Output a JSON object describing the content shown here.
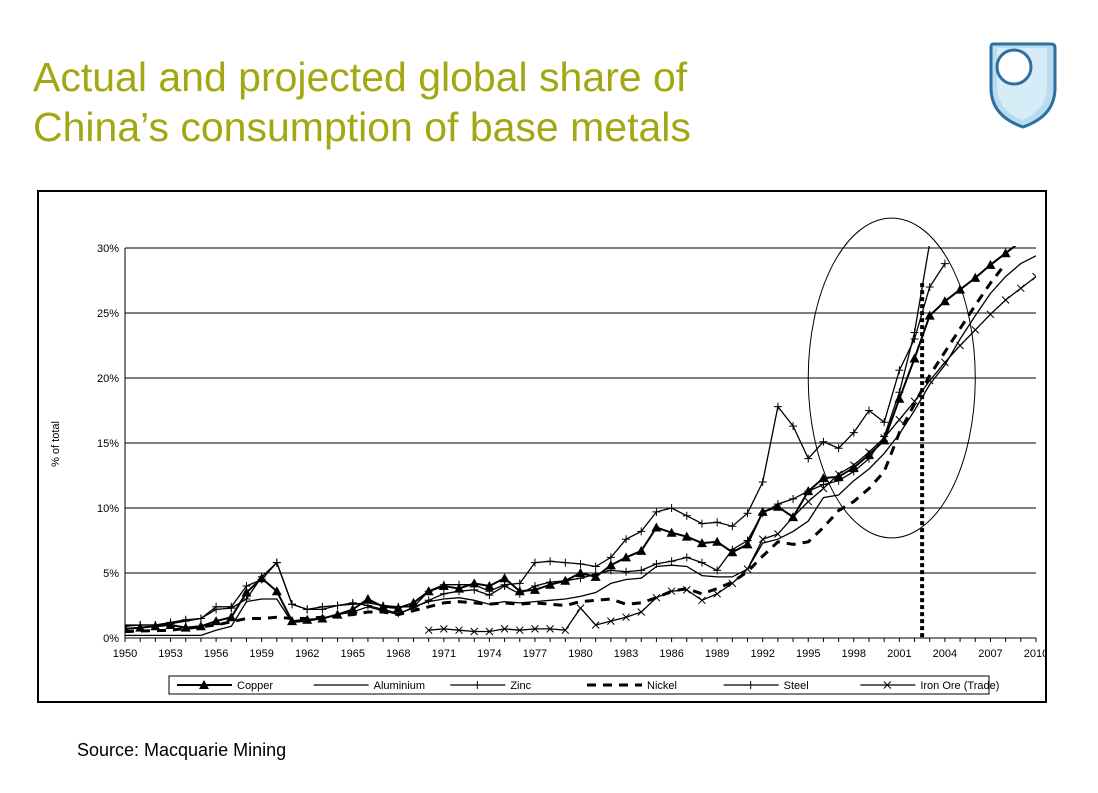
{
  "title_line1": "Actual and projected global share of",
  "title_line2": "China’s consumption of base metals",
  "source": "Source: Macquarie Mining",
  "logo_icon": "open-university-shield-icon",
  "colors": {
    "title": "#a3a711",
    "logo_fill": "#b9dcef",
    "logo_stroke": "#2f6f9f"
  },
  "chart_data": {
    "type": "line",
    "xlim": [
      1950,
      2010
    ],
    "ylim": [
      0,
      30
    ],
    "ylabel": "% of total",
    "xticks": [
      1950,
      1953,
      1956,
      1959,
      1962,
      1965,
      1968,
      1971,
      1974,
      1977,
      1980,
      1983,
      1986,
      1989,
      1992,
      1995,
      1998,
      2001,
      2004,
      2007,
      2010
    ],
    "xtick_labels": [
      "1950",
      "1953",
      "1956",
      "1959",
      "1962",
      "1965",
      "1968",
      "1971",
      "1974",
      "1977",
      "1980",
      "1983",
      "1986",
      "1989",
      "1992",
      "1995",
      "1998",
      "2001",
      "2004",
      "2007",
      "2010"
    ],
    "yticks": [
      0,
      5,
      10,
      15,
      20,
      25,
      30
    ],
    "ytick_labels": [
      "0%",
      "5%",
      "10%",
      "15%",
      "20%",
      "25%",
      "30%"
    ],
    "grid": "horizontal",
    "legend_position": "bottom",
    "annotations": {
      "forecast_line_x": 2002.5,
      "ellipse_center": [
        2000.5,
        20
      ],
      "ellipse_radius": [
        5.5,
        12.3
      ]
    },
    "series": [
      {
        "name": "Copper",
        "marker": "triangle",
        "dash": "solid",
        "x": [
          1950,
          1951,
          1952,
          1953,
          1954,
          1955,
          1956,
          1957,
          1958,
          1959,
          1960,
          1961,
          1962,
          1963,
          1964,
          1965,
          1966,
          1967,
          1968,
          1969,
          1970,
          1971,
          1972,
          1973,
          1974,
          1975,
          1976,
          1977,
          1978,
          1979,
          1980,
          1981,
          1982,
          1983,
          1984,
          1985,
          1986,
          1987,
          1988,
          1989,
          1990,
          1991,
          1992,
          1993,
          1994,
          1995,
          1996,
          1997,
          1998,
          1999,
          2000,
          2001,
          2002,
          2003,
          2004,
          2005,
          2006,
          2007,
          2008,
          2009
        ],
        "values": [
          0.7,
          0.8,
          0.9,
          1.0,
          0.8,
          0.9,
          1.3,
          1.6,
          3.5,
          4.6,
          3.6,
          1.3,
          1.4,
          1.5,
          1.8,
          2.2,
          3.0,
          2.4,
          2.3,
          2.7,
          3.6,
          4.0,
          3.8,
          4.2,
          4.0,
          4.6,
          3.6,
          3.7,
          4.1,
          4.4,
          5.0,
          4.7,
          5.6,
          6.2,
          6.7,
          8.5,
          8.1,
          7.8,
          7.3,
          7.4,
          6.6,
          7.2,
          9.7,
          10.1,
          9.3,
          11.3,
          12.3,
          12.4,
          13.1,
          14.1,
          15.2,
          18.4,
          21.5,
          24.8,
          25.9,
          26.8,
          27.7,
          28.7,
          29.6,
          30.5
        ]
      },
      {
        "name": "Aluminium",
        "marker": "none",
        "dash": "solid",
        "x": [
          1950,
          1951,
          1952,
          1953,
          1954,
          1955,
          1956,
          1957,
          1958,
          1959,
          1960,
          1961,
          1962,
          1963,
          1964,
          1965,
          1966,
          1967,
          1968,
          1969,
          1970,
          1971,
          1972,
          1973,
          1974,
          1975,
          1976,
          1977,
          1978,
          1979,
          1980,
          1981,
          1982,
          1983,
          1984,
          1985,
          1986,
          1987,
          1988,
          1989,
          1990,
          1991,
          1992,
          1993,
          1994,
          1995,
          1996,
          1997,
          1998,
          1999,
          2000,
          2001,
          2002,
          2003,
          2004,
          2005,
          2006,
          2007,
          2008,
          2009,
          2010
        ],
        "values": [
          0.2,
          0.2,
          0.2,
          0.2,
          0.2,
          0.2,
          0.6,
          0.9,
          2.8,
          3.0,
          3.0,
          1.2,
          1.3,
          1.5,
          1.8,
          2.0,
          2.4,
          2.1,
          1.8,
          2.4,
          2.8,
          3.0,
          3.1,
          2.9,
          2.6,
          2.8,
          2.7,
          2.8,
          2.9,
          3.0,
          3.2,
          3.5,
          4.2,
          4.5,
          4.6,
          5.5,
          5.6,
          5.5,
          4.8,
          4.7,
          4.7,
          5.3,
          7.3,
          7.6,
          8.2,
          9.0,
          10.8,
          11.0,
          12.1,
          13.0,
          14.2,
          15.7,
          17.5,
          19.5,
          21.0,
          23.0,
          24.8,
          26.5,
          27.8,
          28.8,
          29.4
        ]
      },
      {
        "name": "Zinc",
        "marker": "plus",
        "dash": "solid",
        "x": [
          1950,
          1951,
          1952,
          1953,
          1954,
          1955,
          1956,
          1957,
          1958,
          1959,
          1960,
          1961,
          1962,
          1963,
          1964,
          1965,
          1966,
          1967,
          1968,
          1969,
          1970,
          1971,
          1972,
          1973,
          1974,
          1975,
          1976,
          1977,
          1978,
          1979,
          1980,
          1981,
          1982,
          1983,
          1984,
          1985,
          1986,
          1987,
          1988,
          1989,
          1990,
          1991,
          1992,
          1993,
          1994,
          1995,
          1996,
          1997,
          1998,
          1999,
          2000,
          2001,
          2002,
          2003
        ],
        "values": [
          0.9,
          1.0,
          1.0,
          1.2,
          1.4,
          1.5,
          2.2,
          2.3,
          3.0,
          4.7,
          5.8,
          2.6,
          2.2,
          2.4,
          2.5,
          2.7,
          2.5,
          2.2,
          1.9,
          2.3,
          2.9,
          3.4,
          3.6,
          3.7,
          3.3,
          4.0,
          3.4,
          4.0,
          4.3,
          4.4,
          4.6,
          4.9,
          5.2,
          5.1,
          5.2,
          5.7,
          5.9,
          6.2,
          5.8,
          5.2,
          6.8,
          7.5,
          9.6,
          10.3,
          10.7,
          11.3,
          11.8,
          12.1,
          12.8,
          13.8,
          15.5,
          18.9,
          23.5,
          30.4
        ]
      },
      {
        "name": "Nickel",
        "marker": "none",
        "dash": "dashed",
        "x": [
          1950,
          1953,
          1956,
          1958,
          1959,
          1960,
          1961,
          1962,
          1963,
          1964,
          1965,
          1966,
          1967,
          1968,
          1969,
          1970,
          1971,
          1972,
          1973,
          1974,
          1975,
          1976,
          1977,
          1978,
          1979,
          1980,
          1981,
          1982,
          1983,
          1984,
          1985,
          1986,
          1987,
          1988,
          1989,
          1990,
          1991,
          1992,
          1993,
          1994,
          1995,
          1996,
          1997,
          1998,
          1999,
          2000,
          2001,
          2002,
          2003,
          2004,
          2005,
          2006,
          2007,
          2008
        ],
        "values": [
          0.5,
          0.6,
          1.0,
          1.5,
          1.5,
          1.6,
          1.5,
          1.5,
          1.6,
          1.7,
          1.8,
          2.0,
          2.0,
          1.8,
          2.1,
          2.4,
          2.7,
          2.8,
          2.7,
          2.6,
          2.7,
          2.6,
          2.7,
          2.6,
          2.5,
          2.8,
          2.9,
          3.0,
          2.6,
          2.7,
          3.1,
          3.6,
          3.8,
          3.4,
          3.8,
          4.3,
          5.1,
          6.3,
          7.4,
          7.2,
          7.4,
          8.5,
          9.8,
          10.5,
          11.5,
          12.8,
          15.8,
          18.0,
          20.2,
          22.0,
          23.8,
          25.6,
          27.3,
          28.8
        ]
      },
      {
        "name": "Steel",
        "marker": "plus",
        "dash": "solid",
        "x": [
          1950,
          1951,
          1952,
          1953,
          1954,
          1955,
          1956,
          1957,
          1958,
          1959,
          1960,
          1961,
          1962,
          1963,
          1964,
          1965,
          1966,
          1967,
          1968,
          1969,
          1970,
          1971,
          1972,
          1973,
          1974,
          1975,
          1976,
          1977,
          1978,
          1979,
          1980,
          1981,
          1982,
          1983,
          1984,
          1985,
          1986,
          1987,
          1988,
          1989,
          1990,
          1991,
          1992,
          1993,
          1994,
          1995,
          1996,
          1997,
          1998,
          1999,
          2000,
          2001,
          2002,
          2003,
          2004
        ],
        "values": [
          1.0,
          1.0,
          1.0,
          1.1,
          1.3,
          1.5,
          2.4,
          2.4,
          4.0,
          4.5,
          5.8,
          2.6,
          2.2,
          2.2,
          2.5,
          2.6,
          2.7,
          2.5,
          2.4,
          2.4,
          3.6,
          4.1,
          4.1,
          4.1,
          3.6,
          4.1,
          4.2,
          5.8,
          5.9,
          5.8,
          5.7,
          5.5,
          6.2,
          7.6,
          8.2,
          9.7,
          10.0,
          9.4,
          8.8,
          8.9,
          8.6,
          9.6,
          12.0,
          17.8,
          16.3,
          13.8,
          15.1,
          14.6,
          15.8,
          17.5,
          16.6,
          20.6,
          23.0,
          27.0,
          28.8
        ]
      },
      {
        "name": "Iron Ore (Trade)",
        "marker": "x",
        "dash": "solid",
        "x": [
          1950,
          1951,
          1952,
          1953,
          1954,
          1955,
          1956,
          1957,
          1958,
          1959,
          1960,
          1961,
          1962,
          1963,
          1964,
          1965,
          1966,
          1967,
          1968,
          1969,
          1970,
          1971,
          1972,
          1973,
          1974,
          1975,
          1976,
          1977,
          1978,
          1979,
          1980,
          1981,
          1982,
          1983,
          1984,
          1985,
          1986,
          1987,
          1988,
          1989,
          1990,
          1991,
          1992,
          1993,
          1994,
          1995,
          1996,
          1997,
          1998,
          1999,
          2000,
          2001,
          2002,
          2003,
          2004,
          2005,
          2006,
          2007,
          2008,
          2009,
          2010
        ],
        "values": [
          null,
          null,
          null,
          null,
          null,
          null,
          null,
          null,
          null,
          null,
          null,
          null,
          null,
          null,
          null,
          null,
          null,
          null,
          null,
          null,
          0.6,
          0.7,
          0.6,
          0.5,
          0.5,
          0.7,
          0.6,
          0.7,
          0.7,
          0.6,
          2.3,
          1.0,
          1.3,
          1.6,
          2.0,
          3.1,
          3.6,
          3.7,
          2.9,
          3.4,
          4.2,
          5.3,
          7.6,
          8.0,
          9.3,
          10.5,
          11.5,
          12.6,
          13.3,
          14.3,
          15.4,
          16.8,
          18.2,
          19.8,
          21.2,
          22.5,
          23.7,
          24.9,
          26.0,
          26.9,
          27.8
        ]
      }
    ]
  }
}
